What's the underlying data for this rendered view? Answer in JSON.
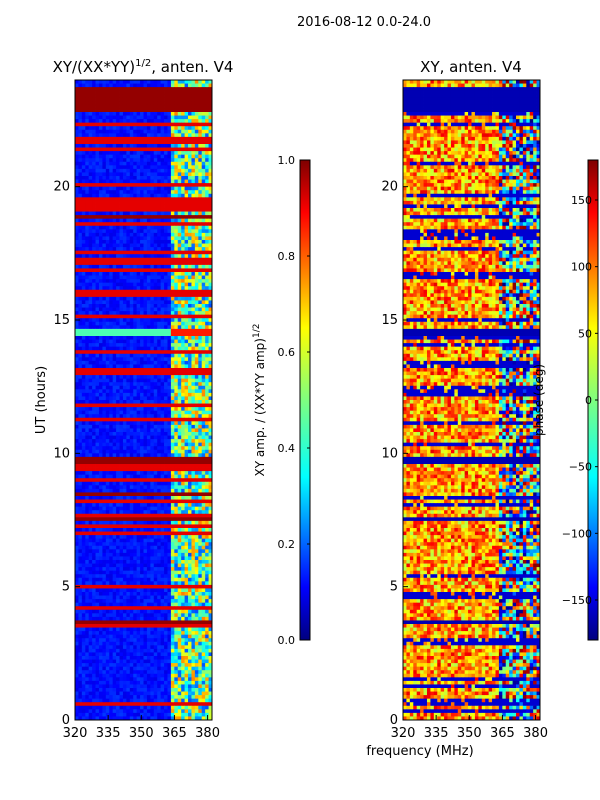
{
  "figure": {
    "suptitle": "2016-08-12 0.0-24.0",
    "xlabel_shared": "frequency (MHz)"
  },
  "chart_data": [
    {
      "type": "heatmap",
      "id": "amp",
      "title": "XY/(XX*YY)",
      "title_exp": "1/2",
      "title_suffix": ", anten. V4",
      "ylabel": "UT (hours)",
      "xlim": [
        320,
        382
      ],
      "ylim": [
        0,
        24
      ],
      "xticks": [
        320,
        335,
        350,
        365,
        380
      ],
      "yticks": [
        0,
        5,
        10,
        15,
        20
      ],
      "saturated_bands_hours": [
        [
          22.85,
          23.7
        ],
        [
          9.55,
          9.9
        ],
        [
          8.35,
          8.55
        ],
        [
          7.4,
          7.65
        ],
        [
          3.55,
          3.75
        ],
        [
          18.85,
          18.95
        ]
      ],
      "bright_band_hours": [
        14.35,
        14.7
      ],
      "active_channel_range_mhz": [
        362,
        382
      ],
      "colorbar": {
        "label": "XY amp. / (XX*YY amp)",
        "label_exp": "1/2",
        "range": [
          0.0,
          1.0
        ],
        "ticks": [
          "0.0",
          "0.2",
          "0.4",
          "0.6",
          "0.8",
          "1.0"
        ],
        "tick_values": [
          0.0,
          0.2,
          0.4,
          0.6,
          0.8,
          1.0
        ]
      }
    },
    {
      "type": "heatmap",
      "id": "phase",
      "title": "XY, anten. V4",
      "xlim": [
        320,
        382
      ],
      "ylim": [
        0,
        24
      ],
      "xticks": [
        320,
        335,
        350,
        365,
        380
      ],
      "yticks": [
        0,
        5,
        10,
        15,
        20
      ],
      "low_bands_hours": [
        [
          22.85,
          23.7
        ],
        [
          9.55,
          9.9
        ],
        [
          14.35,
          14.7
        ],
        [
          7.4,
          7.65
        ],
        [
          3.55,
          3.75
        ]
      ],
      "colorbar": {
        "label": "phase (deg)",
        "range": [
          -180,
          180
        ],
        "ticks": [
          "150",
          "100",
          "50",
          "0",
          "−50",
          "−100",
          "−150"
        ],
        "tick_values": [
          150,
          100,
          50,
          0,
          -50,
          -100,
          -150
        ]
      }
    }
  ],
  "colors": {
    "jet": [
      "#00007f",
      "#0000ff",
      "#007fff",
      "#00ffff",
      "#7fff7f",
      "#ffff00",
      "#ff7f00",
      "#ff0000",
      "#7f0000"
    ]
  }
}
